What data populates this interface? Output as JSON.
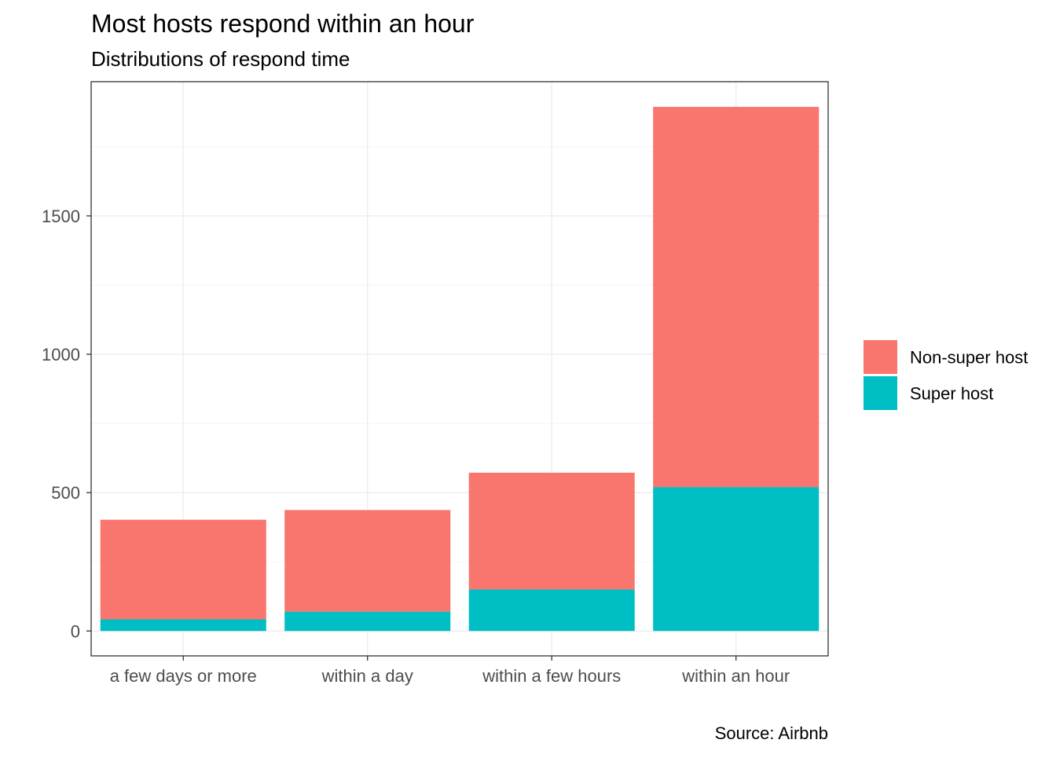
{
  "chart_data": {
    "type": "bar",
    "stacked": true,
    "title": "Most hosts respond within an hour",
    "subtitle": "Distributions of respond time",
    "caption": "Source: Airbnb",
    "xlabel": "",
    "ylabel": "",
    "categories": [
      "a few days or more",
      "within a day",
      "within a few hours",
      "within an hour"
    ],
    "series": [
      {
        "name": "Super host",
        "values": [
          42,
          70,
          150,
          520
        ],
        "color": "#00BFC4"
      },
      {
        "name": "Non-super host",
        "values": [
          360,
          367,
          422,
          1374
        ],
        "color": "#F8766D"
      }
    ],
    "legend_order": [
      "Non-super host",
      "Super host"
    ],
    "yticks": [
      0,
      500,
      1000,
      1500
    ],
    "ylim": [
      -90,
      1985
    ],
    "grid": true,
    "legend_position": "right"
  }
}
